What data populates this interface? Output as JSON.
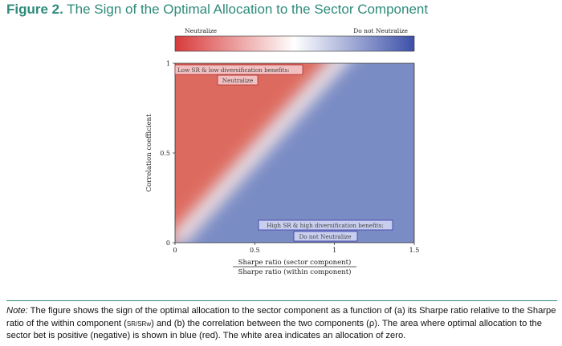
{
  "figure": {
    "number": "Figure 2.",
    "title": "The Sign of the Optimal Allocation to the Sector Component"
  },
  "colorbar": {
    "left_label": "Neutralize",
    "right_label": "Do not Neutralize",
    "colors": [
      "#d83a3a",
      "#ffffff",
      "#3c50a8"
    ]
  },
  "chart_data": {
    "type": "heatmap",
    "xlabel_numerator": "Sharpe ratio (sector component)",
    "xlabel_denominator": "Sharpe ratio (within component)",
    "ylabel": "Correlation coefficient",
    "xlim": [
      0,
      1.5
    ],
    "ylim": [
      0,
      1
    ],
    "x_ticks": [
      {
        "value": 0,
        "label": "0"
      },
      {
        "value": 0.5,
        "label": "0.5"
      },
      {
        "value": 1,
        "label": "1"
      },
      {
        "value": 1.5,
        "label": "1.5"
      }
    ],
    "y_ticks": [
      {
        "value": 0,
        "label": "0"
      },
      {
        "value": 0.5,
        "label": "0.5"
      },
      {
        "value": 1,
        "label": "1"
      }
    ],
    "boundary": "correlation = Sharpe ratio (sector) / Sharpe ratio (within)",
    "regions": [
      {
        "label": "Low SR & low diversification benefits:",
        "sublabel": "Neutralize",
        "color": "#d83a3a"
      },
      {
        "label": "High SR & high diversification benefits:",
        "sublabel": "Do not Neutralize",
        "color": "#3c50a8"
      }
    ]
  },
  "note": {
    "label": "Note:",
    "text_before": " The figure shows the sign of the optimal allocation to the sector component as a function of (a) its Sharpe ratio relative to the Sharpe ratio of the within component (",
    "frac_symbol": "SR/SRw",
    "text_after": ") and (b) the correlation between the two components (ρ). The area where optimal allocation to the sector bet is positive (negative) is shown in blue (red). The white area indicates an allocation of zero."
  }
}
